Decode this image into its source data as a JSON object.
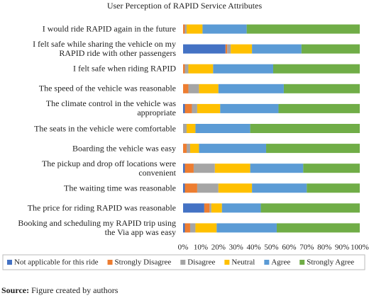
{
  "chart_data": {
    "type": "stacked-bar-horizontal",
    "title": "User Perception of RAPID Service Attributes",
    "categories": [
      "I would ride RAPID again in the future",
      "I felt safe while sharing the vehicle on my RAPID ride with other passengers",
      "I felt safe when riding RAPID",
      "The speed of the vehicle was reasonable",
      "The climate control in the vehicle was appropriate",
      "The seats in the vehicle were comfortable",
      "Boarding the vehicle was easy",
      "The pickup and drop off locations were convenient",
      "The waiting time was reasonable",
      "The price for riding RAPID was reasonable",
      "Booking and scheduling my RAPID trip using the Via app was easy"
    ],
    "series": [
      {
        "name": "Not applicable for this ride",
        "color": "#4472c4",
        "values": [
          0,
          24,
          0,
          0,
          1,
          0,
          0,
          1,
          1,
          12,
          1
        ]
      },
      {
        "name": "Strongly Disagree",
        "color": "#ed7d31",
        "values": [
          1,
          1,
          1,
          3,
          4,
          0,
          2,
          5,
          7,
          3,
          3
        ]
      },
      {
        "name": "Disagree",
        "color": "#a5a5a5",
        "values": [
          1,
          2,
          2,
          6,
          3,
          2,
          2,
          12,
          12,
          1,
          3
        ]
      },
      {
        "name": "Neutral",
        "color": "#ffc000",
        "values": [
          9,
          12,
          14,
          11,
          13,
          5,
          5,
          20,
          19,
          6,
          12
        ]
      },
      {
        "name": "Agree",
        "color": "#5b9bd5",
        "values": [
          25,
          28,
          34,
          37,
          33,
          31,
          38,
          30,
          31,
          22,
          34
        ]
      },
      {
        "name": "Strongly Agree",
        "color": "#70ad47",
        "values": [
          64,
          33,
          49,
          43,
          46,
          62,
          53,
          32,
          30,
          56,
          47
        ]
      }
    ],
    "xlim": [
      0,
      100
    ],
    "xticks": [
      {
        "value": 0,
        "label": "0%"
      },
      {
        "value": 10,
        "label": "10%"
      },
      {
        "value": 20,
        "label": "20%"
      },
      {
        "value": 30,
        "label": "30%"
      },
      {
        "value": 40,
        "label": "40%"
      },
      {
        "value": 50,
        "label": "50%"
      },
      {
        "value": 60,
        "label": "60%"
      },
      {
        "value": 70,
        "label": "70%"
      },
      {
        "value": 80,
        "label": "80%"
      },
      {
        "value": 90,
        "label": "90%"
      },
      {
        "value": 100,
        "label": "100%"
      }
    ],
    "grid": false,
    "legend": "bottom"
  },
  "source_label": "Source:",
  "source_text": "Figure created by authors"
}
